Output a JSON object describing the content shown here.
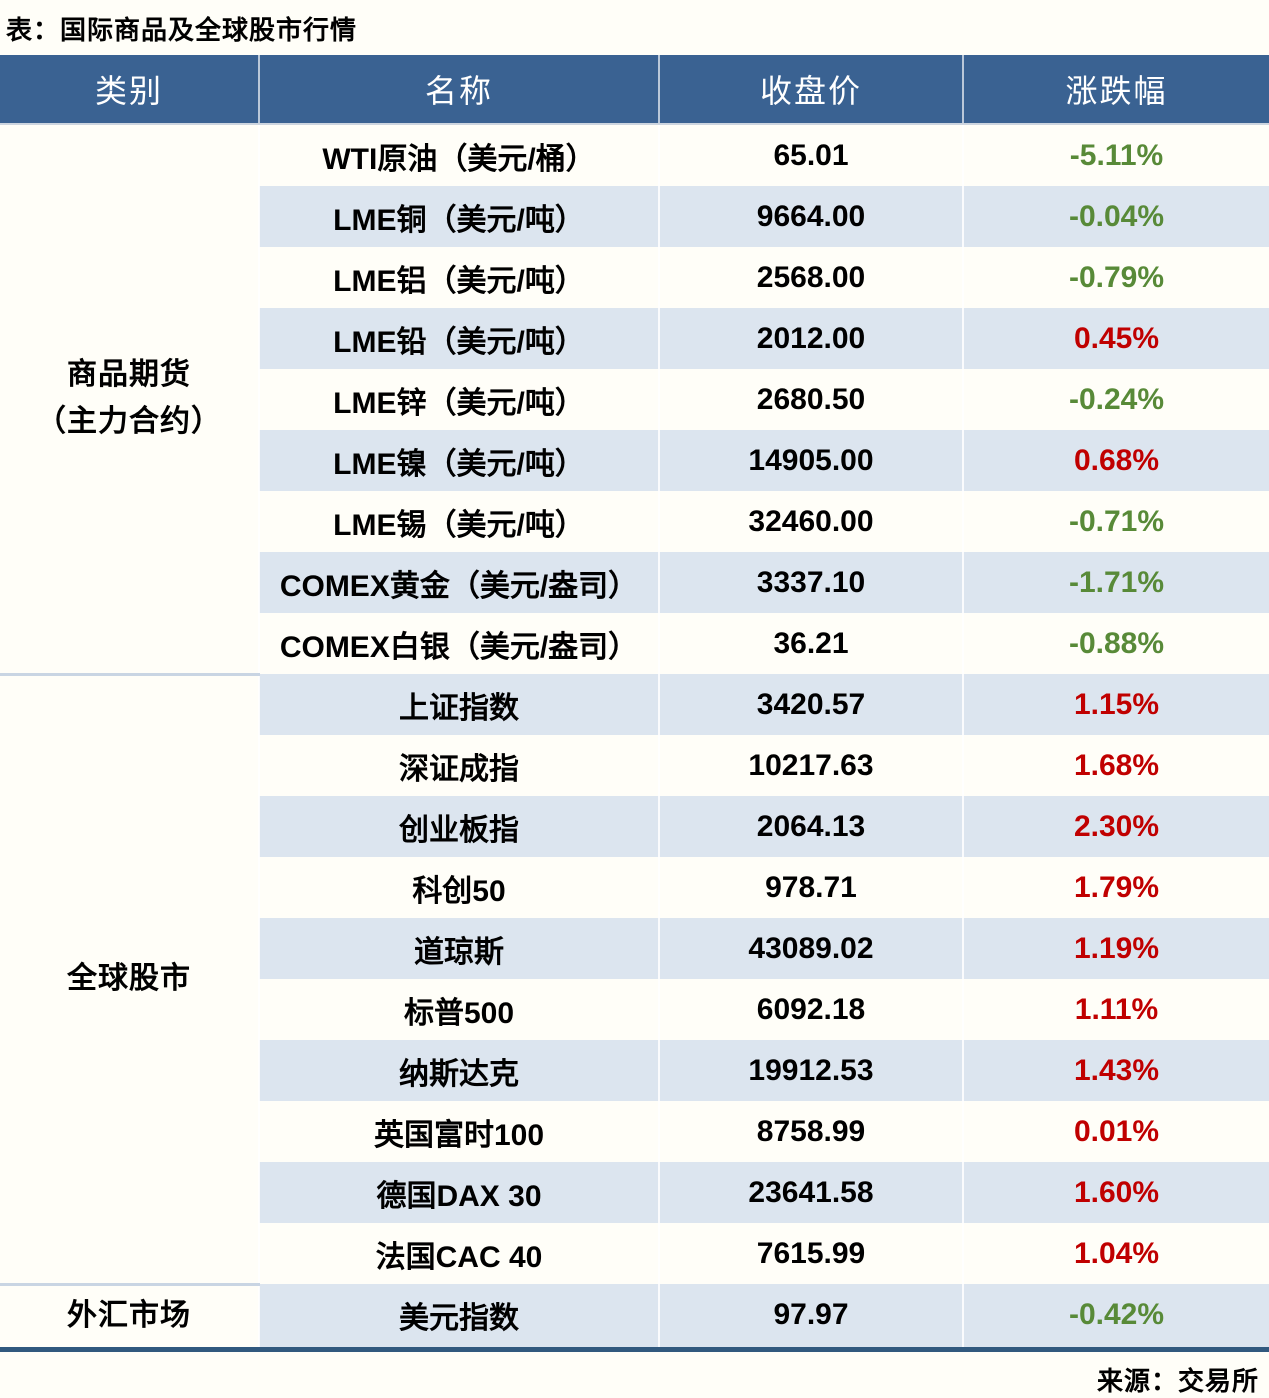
{
  "page": {
    "title": "表：国际商品及全球股市行情",
    "source": "来源：交易所"
  },
  "colors": {
    "header_bg": "#3A6292",
    "alt_row": "#DCE5EF",
    "up_red": "#C00000",
    "down_green": "#588A38",
    "bottom_border": "#31597E"
  },
  "chart_data": {
    "type": "table",
    "title": "表：国际商品及全球股市行情",
    "columns": [
      "类别",
      "名称",
      "收盘价",
      "涨跌幅"
    ],
    "groups": [
      {
        "category": "商品期货\n（主力合约）",
        "rows": [
          {
            "name": "WTI原油（美元/桶）",
            "close": "65.01",
            "change": "-5.11%"
          },
          {
            "name": "LME铜（美元/吨）",
            "close": "9664.00",
            "change": "-0.04%"
          },
          {
            "name": "LME铝（美元/吨）",
            "close": "2568.00",
            "change": "-0.79%"
          },
          {
            "name": "LME铅（美元/吨）",
            "close": "2012.00",
            "change": "0.45%"
          },
          {
            "name": "LME锌（美元/吨）",
            "close": "2680.50",
            "change": "-0.24%"
          },
          {
            "name": "LME镍（美元/吨）",
            "close": "14905.00",
            "change": "0.68%"
          },
          {
            "name": "LME锡（美元/吨）",
            "close": "32460.00",
            "change": "-0.71%"
          },
          {
            "name": "COMEX黄金（美元/盎司）",
            "close": "3337.10",
            "change": "-1.71%"
          },
          {
            "name": "COMEX白银（美元/盎司）",
            "close": "36.21",
            "change": "-0.88%"
          }
        ]
      },
      {
        "category": "全球股市",
        "rows": [
          {
            "name": "上证指数",
            "close": "3420.57",
            "change": "1.15%"
          },
          {
            "name": "深证成指",
            "close": "10217.63",
            "change": "1.68%"
          },
          {
            "name": "创业板指",
            "close": "2064.13",
            "change": "2.30%"
          },
          {
            "name": "科创50",
            "close": "978.71",
            "change": "1.79%"
          },
          {
            "name": "道琼斯",
            "close": "43089.02",
            "change": "1.19%"
          },
          {
            "name": "标普500",
            "close": "6092.18",
            "change": "1.11%"
          },
          {
            "name": "纳斯达克",
            "close": "19912.53",
            "change": "1.43%"
          },
          {
            "name": "英国富时100",
            "close": "8758.99",
            "change": "0.01%"
          },
          {
            "name": "德国DAX 30",
            "close": "23641.58",
            "change": "1.60%"
          },
          {
            "name": "法国CAC 40",
            "close": "7615.99",
            "change": "1.04%"
          }
        ]
      },
      {
        "category": "外汇市场",
        "rows": [
          {
            "name": "美元指数",
            "close": "97.97",
            "change": "-0.42%"
          }
        ]
      }
    ]
  }
}
